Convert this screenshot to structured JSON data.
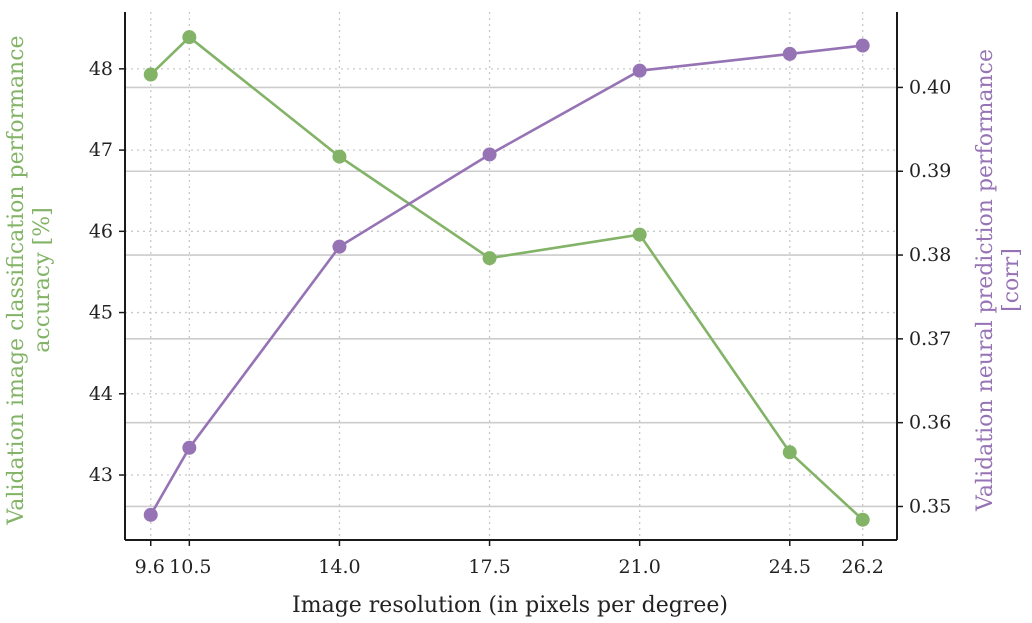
{
  "chart_data": {
    "type": "line",
    "xlabel": "Image resolution (in pixels per degree)",
    "x_ticks": [
      "9.6",
      "10.5",
      "14.0",
      "17.5",
      "21.0",
      "24.5",
      "26.2"
    ],
    "x": [
      9.6,
      10.5,
      14.0,
      17.5,
      21.0,
      24.5,
      26.2
    ],
    "xlim": [
      9.0,
      27.0
    ],
    "y_left": {
      "label_line1": "Validation image classification performance",
      "label_line2": "accuracy [%]",
      "ticks": [
        "43",
        "44",
        "45",
        "46",
        "47",
        "48"
      ],
      "ylim": [
        42.2,
        48.7
      ],
      "color": "#82b366"
    },
    "y_right": {
      "label_line1": "Validation neural prediction performance",
      "label_line2": "[corr]",
      "ticks": [
        "0.35",
        "0.36",
        "0.37",
        "0.38",
        "0.39",
        "0.40"
      ],
      "ylim": [
        0.346,
        0.409
      ],
      "color": "#9673b4"
    },
    "series": [
      {
        "axis": "left",
        "color": "#82b366",
        "values": [
          47.93,
          48.39,
          46.92,
          45.67,
          45.96,
          43.28,
          42.45
        ]
      },
      {
        "axis": "right",
        "color": "#9673b4",
        "values": [
          0.349,
          0.357,
          0.381,
          0.392,
          0.402,
          0.404,
          0.405
        ]
      }
    ],
    "grid": true
  }
}
